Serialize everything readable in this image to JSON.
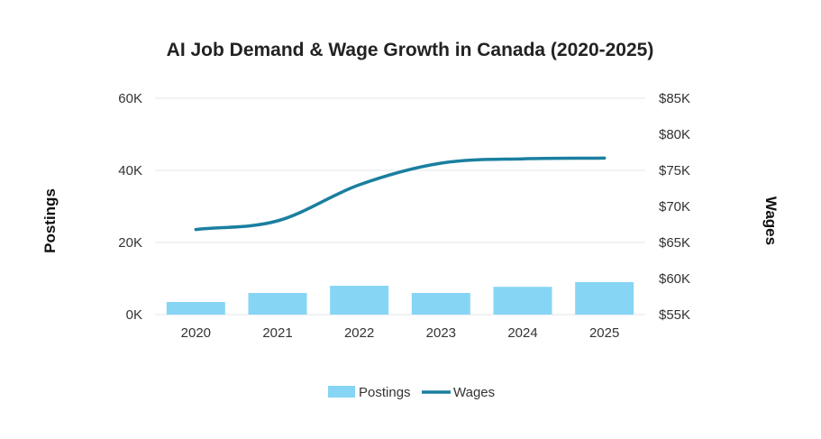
{
  "chart_data": {
    "type": "bar+line",
    "title": "AI Job Demand & Wage Growth in Canada (2020-2025)",
    "categories": [
      "2020",
      "2021",
      "2022",
      "2023",
      "2024",
      "2025"
    ],
    "series": [
      {
        "name": "Postings",
        "type": "bar",
        "axis": "left",
        "values": [
          3500,
          6000,
          8000,
          6000,
          7700,
          9000
        ],
        "color": "#86d5f5"
      },
      {
        "name": "Wages",
        "type": "line",
        "axis": "right",
        "values": [
          66800,
          68000,
          73000,
          76000,
          76600,
          76700
        ],
        "color": "#1a7fa0"
      }
    ],
    "y_left": {
      "label": "Postings",
      "range": [
        0,
        60000
      ],
      "ticks": [
        0,
        20000,
        40000,
        60000
      ],
      "tick_labels": [
        "0K",
        "20K",
        "40K",
        "60K"
      ]
    },
    "y_right": {
      "label": "Wages",
      "range": [
        55000,
        85000
      ],
      "ticks": [
        55000,
        60000,
        65000,
        70000,
        75000,
        80000,
        85000
      ],
      "tick_labels": [
        "$55K",
        "$60K",
        "$65K",
        "$70K",
        "$75K",
        "$80K",
        "$85K"
      ]
    },
    "grid": true,
    "legend": {
      "position": "bottom",
      "entries": [
        "Postings",
        "Wages"
      ]
    }
  }
}
